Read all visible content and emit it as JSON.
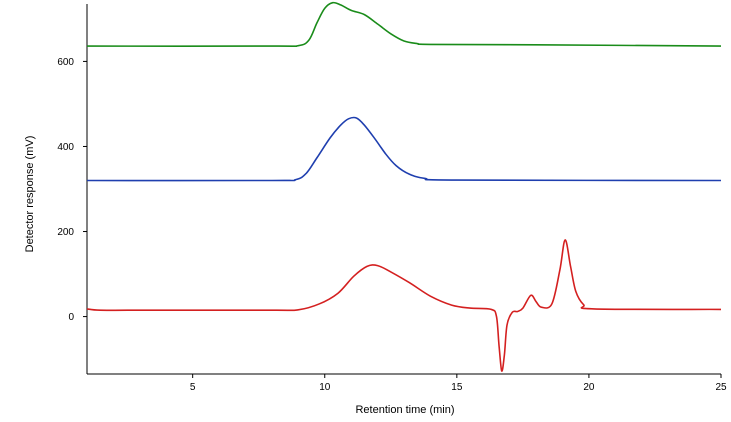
{
  "chart_data": {
    "type": "line",
    "xlabel": "Retention time (min)",
    "ylabel": "Detector response (mV)",
    "xlim": [
      1,
      25
    ],
    "ylim": [
      -135,
      735
    ],
    "xticks": [
      5,
      10,
      15,
      20,
      25
    ],
    "yticks": [
      0,
      200,
      400,
      600
    ],
    "grid": false,
    "legend": "none",
    "series": [
      {
        "color": "#1a8c1a",
        "points": [
          [
            1,
            636
          ],
          [
            8,
            636
          ],
          [
            9.0,
            637
          ],
          [
            9.4,
            650
          ],
          [
            9.7,
            690
          ],
          [
            10.0,
            725
          ],
          [
            10.3,
            738
          ],
          [
            10.6,
            733
          ],
          [
            11.0,
            720
          ],
          [
            11.5,
            710
          ],
          [
            12.0,
            688
          ],
          [
            12.5,
            665
          ],
          [
            13.0,
            648
          ],
          [
            13.5,
            642
          ],
          [
            14.0,
            640
          ],
          [
            18.0,
            639
          ],
          [
            25,
            636
          ]
        ]
      },
      {
        "color": "#1f3faf",
        "points": [
          [
            1,
            320
          ],
          [
            8,
            320
          ],
          [
            8.9,
            322
          ],
          [
            9.3,
            337
          ],
          [
            9.7,
            373
          ],
          [
            10.2,
            420
          ],
          [
            10.6,
            450
          ],
          [
            10.9,
            465
          ],
          [
            11.2,
            467
          ],
          [
            11.5,
            450
          ],
          [
            11.9,
            418
          ],
          [
            12.3,
            383
          ],
          [
            12.7,
            355
          ],
          [
            13.2,
            335
          ],
          [
            13.8,
            325
          ],
          [
            15,
            321
          ],
          [
            25,
            320
          ]
        ]
      },
      {
        "color": "#d42020",
        "points": [
          [
            1,
            18
          ],
          [
            1.5,
            15
          ],
          [
            3,
            15
          ],
          [
            8,
            15
          ],
          [
            9,
            16
          ],
          [
            9.8,
            30
          ],
          [
            10.5,
            55
          ],
          [
            11.1,
            95
          ],
          [
            11.6,
            118
          ],
          [
            12.0,
            120
          ],
          [
            12.5,
            105
          ],
          [
            13.2,
            80
          ],
          [
            14.0,
            48
          ],
          [
            14.8,
            27
          ],
          [
            15.5,
            20
          ],
          [
            16.3,
            17
          ],
          [
            16.5,
            0
          ],
          [
            16.6,
            -70
          ],
          [
            16.7,
            -128
          ],
          [
            16.8,
            -90
          ],
          [
            16.9,
            -20
          ],
          [
            17.1,
            10
          ],
          [
            17.3,
            12
          ],
          [
            17.5,
            20
          ],
          [
            17.8,
            50
          ],
          [
            18.0,
            35
          ],
          [
            18.2,
            22
          ],
          [
            18.6,
            30
          ],
          [
            18.9,
            110
          ],
          [
            19.1,
            180
          ],
          [
            19.3,
            120
          ],
          [
            19.5,
            60
          ],
          [
            19.8,
            28
          ],
          [
            20.2,
            18
          ],
          [
            25,
            17
          ]
        ]
      }
    ]
  }
}
